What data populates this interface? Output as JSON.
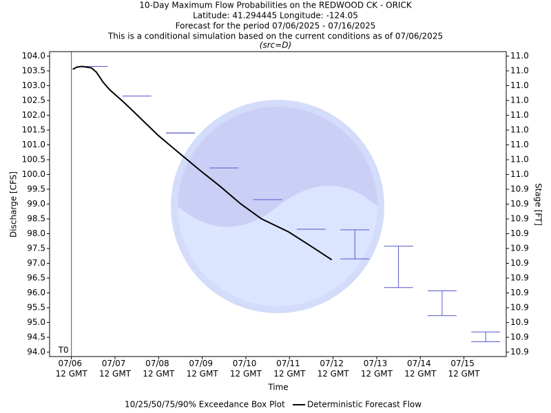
{
  "chart_data": {
    "type": "line",
    "title_lines": [
      "10-Day Maximum Flow Probabilities on the REDWOOD CK - ORICK",
      "Latitude: 41.294445 Longitude: -124.05",
      "Forecast for the period 07/06/2025 - 07/16/2025",
      "This is a conditional simulation based on the current conditions as of 07/06/2025"
    ],
    "source": "(src=D)",
    "x_label": "Time",
    "y_label": "Discharge [CFS]",
    "y2_label": "Stage [FT]",
    "xlim": [
      -0.5,
      9.97
    ],
    "xticks": [
      {
        "value": 0,
        "label": "07/06 12 GMT"
      },
      {
        "value": 1,
        "label": "07/07 12 GMT"
      },
      {
        "value": 2,
        "label": "07/08 12 GMT"
      },
      {
        "value": 3,
        "label": "07/09 12 GMT"
      },
      {
        "value": 4,
        "label": "07/10 12 GMT"
      },
      {
        "value": 5,
        "label": "07/11 12 GMT"
      },
      {
        "value": 6,
        "label": "07/12 12 GMT"
      },
      {
        "value": 7,
        "label": "07/13 12 GMT"
      },
      {
        "value": 8,
        "label": "07/14 12 GMT"
      },
      {
        "value": 9,
        "label": "07/15 12 GMT"
      }
    ],
    "ylim": [
      93.85,
      104.15
    ],
    "yticks": [
      {
        "value": 94,
        "label": "94.0"
      },
      94.5,
      {
        "value": 95,
        "label": "95.0"
      },
      95.5,
      {
        "value": 96,
        "label": "96.0"
      },
      96.5,
      {
        "value": 97,
        "label": "97.0"
      },
      97.5,
      {
        "value": 98,
        "label": "98.0"
      },
      98.5,
      {
        "value": 99,
        "label": "99.0"
      },
      99.5,
      {
        "value": 100,
        "label": "100.0"
      },
      100.5,
      {
        "value": 101,
        "label": "101.0"
      },
      101.5,
      {
        "value": 102,
        "label": "102.0"
      },
      102.5,
      {
        "value": 103,
        "label": "103.0"
      },
      103.5,
      {
        "value": 104,
        "label": "104.0"
      }
    ],
    "y2lim": [
      10.86175,
      11.01625
    ],
    "y2ticks": [
      {
        "value": 10.864,
        "label": "10.9"
      },
      {
        "value": 10.8715,
        "label": "10.9"
      },
      {
        "value": 10.879,
        "label": "10.9"
      },
      {
        "value": 10.8865,
        "label": "10.9"
      },
      {
        "value": 10.894,
        "label": "10.9"
      },
      {
        "value": 10.9015,
        "label": "10.9"
      },
      {
        "value": 10.909,
        "label": "10.9"
      },
      {
        "value": 10.9165,
        "label": "10.9"
      },
      {
        "value": 10.924,
        "label": "10.9"
      },
      {
        "value": 10.9315,
        "label": "10.9"
      },
      {
        "value": 10.939,
        "label": "10.9"
      },
      {
        "value": 10.9465,
        "label": "10.9"
      },
      {
        "value": 10.954,
        "label": "11.0"
      },
      {
        "value": 10.9615,
        "label": "11.0"
      },
      {
        "value": 10.969,
        "label": "11.0"
      },
      {
        "value": 10.9765,
        "label": "11.0"
      },
      {
        "value": 10.984,
        "label": "11.0"
      },
      {
        "value": 10.9915,
        "label": "11.0"
      },
      {
        "value": 10.999,
        "label": "11.0"
      },
      {
        "value": 11.0065,
        "label": "11.0"
      },
      {
        "value": 11.014,
        "label": "11.0"
      }
    ],
    "t0": {
      "x": 0,
      "label": "T0"
    },
    "boxplot": {
      "name": "10/25/50/75/90% Exceedance Box Plot",
      "color": "#5555cc",
      "x": [
        0.5,
        1.5,
        2.5,
        3.5,
        4.5,
        5.5,
        6.5,
        7.5,
        8.5,
        9.5
      ],
      "high": [
        103.65,
        102.65,
        101.4,
        100.22,
        99.15,
        98.15,
        98.13,
        97.58,
        96.07,
        94.68
      ],
      "low": [
        103.65,
        102.65,
        101.4,
        100.22,
        99.15,
        98.15,
        97.15,
        96.18,
        95.23,
        94.35
      ]
    },
    "series": [
      {
        "name": "Deterministic Forecast Flow",
        "color": "#000000",
        "x": [
          0.03,
          0.13,
          0.25,
          0.46,
          0.57,
          0.73,
          0.88,
          1.04,
          1.2,
          1.52,
          1.99,
          2.46,
          2.94,
          3.41,
          3.88,
          4.36,
          4.98,
          5.47,
          5.97
        ],
        "values": [
          103.55,
          103.63,
          103.65,
          103.6,
          103.46,
          103.11,
          102.86,
          102.65,
          102.44,
          101.99,
          101.32,
          100.74,
          100.15,
          99.6,
          99.01,
          98.5,
          98.06,
          97.6,
          97.12
        ]
      }
    ]
  }
}
